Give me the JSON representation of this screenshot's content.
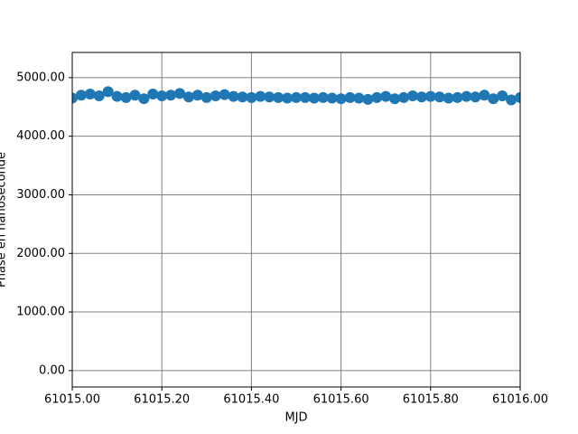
{
  "chart_data": {
    "type": "scatter",
    "x_label": "MJD",
    "y_label": "Phase en nanoseconde",
    "x": [
      61015.0,
      61015.02,
      61015.04,
      61015.06,
      61015.08,
      61015.1,
      61015.12,
      61015.14,
      61015.16,
      61015.18,
      61015.2,
      61015.22,
      61015.24,
      61015.26,
      61015.28,
      61015.3,
      61015.32,
      61015.34,
      61015.36,
      61015.38,
      61015.4,
      61015.42,
      61015.44,
      61015.46,
      61015.48,
      61015.5,
      61015.52,
      61015.54,
      61015.56,
      61015.58,
      61015.6,
      61015.62,
      61015.64,
      61015.66,
      61015.68,
      61015.7,
      61015.72,
      61015.74,
      61015.76,
      61015.78,
      61015.8,
      61015.82,
      61015.84,
      61015.86,
      61015.88,
      61015.9,
      61015.92,
      61015.94,
      61015.96,
      61015.98,
      61016.0
    ],
    "values": [
      4650,
      4700,
      4720,
      4690,
      4760,
      4680,
      4660,
      4700,
      4640,
      4720,
      4690,
      4700,
      4730,
      4670,
      4700,
      4660,
      4690,
      4710,
      4680,
      4670,
      4660,
      4680,
      4670,
      4660,
      4650,
      4660,
      4660,
      4650,
      4660,
      4650,
      4640,
      4660,
      4650,
      4630,
      4660,
      4680,
      4640,
      4660,
      4690,
      4670,
      4680,
      4670,
      4650,
      4660,
      4680,
      4670,
      4700,
      4640,
      4690,
      4620,
      4660
    ],
    "color": "#1f77b4",
    "xlim": [
      61015,
      61016
    ],
    "xticks": [
      {
        "value": 61015,
        "label": "61015.00"
      },
      {
        "value": 61015.2,
        "label": "61015.20"
      },
      {
        "value": 61015.4,
        "label": "61015.40"
      },
      {
        "value": 61015.6,
        "label": "61015.60"
      },
      {
        "value": 61015.8,
        "label": "61015.80"
      },
      {
        "value": 61016,
        "label": "61016.00"
      }
    ],
    "ylim": [
      -280,
      5430
    ],
    "yticks": [
      {
        "value": 0,
        "label": "0.00"
      },
      {
        "value": 1000,
        "label": "1000.00"
      },
      {
        "value": 2000,
        "label": "2000.00"
      },
      {
        "value": 3000,
        "label": "3000.00"
      },
      {
        "value": 4000,
        "label": "4000.00"
      },
      {
        "value": 5000,
        "label": "5000.00"
      }
    ],
    "grid": true
  }
}
